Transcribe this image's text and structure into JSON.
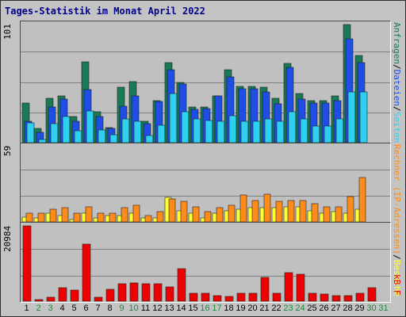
{
  "title": "Tages-Statistik im Monat April 2022",
  "colors": {
    "hits": "#1a7a55",
    "files": "#1e4ee6",
    "pages": "#2ed0ef",
    "visits": "#ffff33",
    "sites": "#ff8c1a",
    "kbytes": "#ee0000",
    "weekday_label": "#000000",
    "weekend_label": "#1a8a3a",
    "plot_bg": "#c0c0c0",
    "frame_bg": "#c4c4c4"
  },
  "legend": {
    "hits_panel": {
      "a": "Anfragen",
      "sep1": "/",
      "b": "Dateien",
      "sep2": "/",
      "c": "Seiten"
    },
    "hosts_panel": {
      "a": "Rechner (IP-Adressen)",
      "sep": "/",
      "b": "Besuche"
    },
    "kb_panel": "kB F"
  },
  "chart_data": [
    {
      "type": "bar",
      "name_key": "hits-files-pages",
      "ymax_label": "101",
      "ylim": [
        0,
        101
      ],
      "categories": [
        "1",
        "2",
        "3",
        "4",
        "5",
        "6",
        "7",
        "8",
        "9",
        "10",
        "11",
        "12",
        "13",
        "14",
        "15",
        "16",
        "17",
        "18",
        "19",
        "20",
        "21",
        "22",
        "23",
        "24",
        "25",
        "26",
        "27",
        "28",
        "29",
        "30",
        "31"
      ],
      "series": [
        {
          "name": "Anfragen",
          "values": [
            34,
            12,
            38,
            40,
            22,
            69,
            26,
            13,
            47,
            52,
            18,
            36,
            68,
            51,
            30,
            30,
            40,
            62,
            48,
            48,
            47,
            38,
            67,
            42,
            36,
            36,
            40,
            100,
            74,
            0,
            0
          ]
        },
        {
          "name": "Dateien",
          "values": [
            18,
            9,
            30,
            37,
            18,
            45,
            22,
            12,
            31,
            40,
            16,
            35,
            62,
            50,
            28,
            29,
            40,
            56,
            46,
            46,
            43,
            33,
            64,
            37,
            34,
            34,
            36,
            88,
            68,
            0,
            0
          ]
        },
        {
          "name": "Seiten",
          "values": [
            17,
            3,
            16,
            22,
            10,
            27,
            11,
            7,
            20,
            18,
            6,
            15,
            42,
            26,
            20,
            19,
            18,
            23,
            18,
            18,
            20,
            18,
            26,
            20,
            14,
            14,
            20,
            43,
            43,
            0,
            0
          ]
        }
      ]
    },
    {
      "type": "bar",
      "name_key": "visits-sites",
      "ymax_label": "59",
      "ylim": [
        0,
        59
      ],
      "categories": [
        "1",
        "2",
        "3",
        "4",
        "5",
        "6",
        "7",
        "8",
        "9",
        "10",
        "11",
        "12",
        "13",
        "14",
        "15",
        "16",
        "17",
        "18",
        "19",
        "20",
        "21",
        "22",
        "23",
        "24",
        "25",
        "26",
        "27",
        "28",
        "29",
        "30",
        "31"
      ],
      "series": [
        {
          "name": "Besuche",
          "values": [
            4,
            3,
            7,
            5,
            2,
            7,
            3,
            5,
            5,
            7,
            3,
            3,
            19,
            9,
            7,
            3,
            7,
            9,
            10,
            11,
            11,
            11,
            12,
            12,
            9,
            7,
            8,
            7,
            10,
            0,
            0
          ]
        },
        {
          "name": "Rechner",
          "values": [
            7,
            7,
            10,
            11,
            7,
            12,
            7,
            7,
            11,
            13,
            5,
            8,
            18,
            16,
            12,
            8,
            11,
            13,
            21,
            17,
            22,
            16,
            17,
            17,
            14,
            12,
            12,
            20,
            35,
            0,
            0
          ]
        }
      ]
    },
    {
      "type": "bar",
      "name_key": "kbytes",
      "ymax_label": "20984",
      "ylim": [
        0,
        20984
      ],
      "categories": [
        "1",
        "2",
        "3",
        "4",
        "5",
        "6",
        "7",
        "8",
        "9",
        "10",
        "11",
        "12",
        "13",
        "14",
        "15",
        "16",
        "17",
        "18",
        "19",
        "20",
        "21",
        "22",
        "23",
        "24",
        "25",
        "26",
        "27",
        "28",
        "29",
        "30",
        "31"
      ],
      "series": [
        {
          "name": "kB F",
          "values": [
            20984,
            440,
            1000,
            3700,
            3000,
            15800,
            1000,
            3300,
            4900,
            5000,
            4800,
            4900,
            3900,
            9000,
            2200,
            2200,
            1600,
            1300,
            2200,
            2200,
            6600,
            2200,
            7900,
            7400,
            2200,
            2000,
            1600,
            1600,
            2200,
            3800,
            0
          ]
        }
      ]
    }
  ],
  "days": [
    {
      "label": "1",
      "weekend": false
    },
    {
      "label": "2",
      "weekend": true
    },
    {
      "label": "3",
      "weekend": true
    },
    {
      "label": "4",
      "weekend": false
    },
    {
      "label": "5",
      "weekend": false
    },
    {
      "label": "6",
      "weekend": false
    },
    {
      "label": "7",
      "weekend": false
    },
    {
      "label": "8",
      "weekend": false
    },
    {
      "label": "9",
      "weekend": true
    },
    {
      "label": "10",
      "weekend": true
    },
    {
      "label": "11",
      "weekend": false
    },
    {
      "label": "12",
      "weekend": false
    },
    {
      "label": "13",
      "weekend": false
    },
    {
      "label": "14",
      "weekend": false
    },
    {
      "label": "15",
      "weekend": false
    },
    {
      "label": "16",
      "weekend": true
    },
    {
      "label": "17",
      "weekend": true
    },
    {
      "label": "18",
      "weekend": false
    },
    {
      "label": "19",
      "weekend": false
    },
    {
      "label": "20",
      "weekend": false
    },
    {
      "label": "21",
      "weekend": false
    },
    {
      "label": "22",
      "weekend": false
    },
    {
      "label": "23",
      "weekend": true
    },
    {
      "label": "24",
      "weekend": true
    },
    {
      "label": "25",
      "weekend": false
    },
    {
      "label": "26",
      "weekend": false
    },
    {
      "label": "27",
      "weekend": false
    },
    {
      "label": "28",
      "weekend": false
    },
    {
      "label": "29",
      "weekend": false
    },
    {
      "label": "30",
      "weekend": true
    },
    {
      "label": "31",
      "weekend": true
    }
  ]
}
